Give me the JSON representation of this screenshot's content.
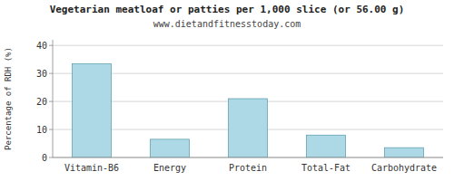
{
  "chart_data": {
    "type": "bar",
    "title": "Vegetarian meatloaf or patties per 1,000 slice (or 56.00 g)",
    "subtitle": "www.dietandfitnesstoday.com",
    "categories": [
      "Vitamin-B6",
      "Energy",
      "Protein",
      "Total-Fat",
      "Carbohydrate"
    ],
    "values": [
      33.5,
      6.5,
      21.0,
      8.0,
      3.5
    ],
    "color": "#add8e6",
    "ylabel": "Percentage of RDH (%)",
    "ylim": [
      0,
      42
    ],
    "yticks": [
      0,
      10,
      20,
      30,
      40
    ],
    "grid": true
  }
}
